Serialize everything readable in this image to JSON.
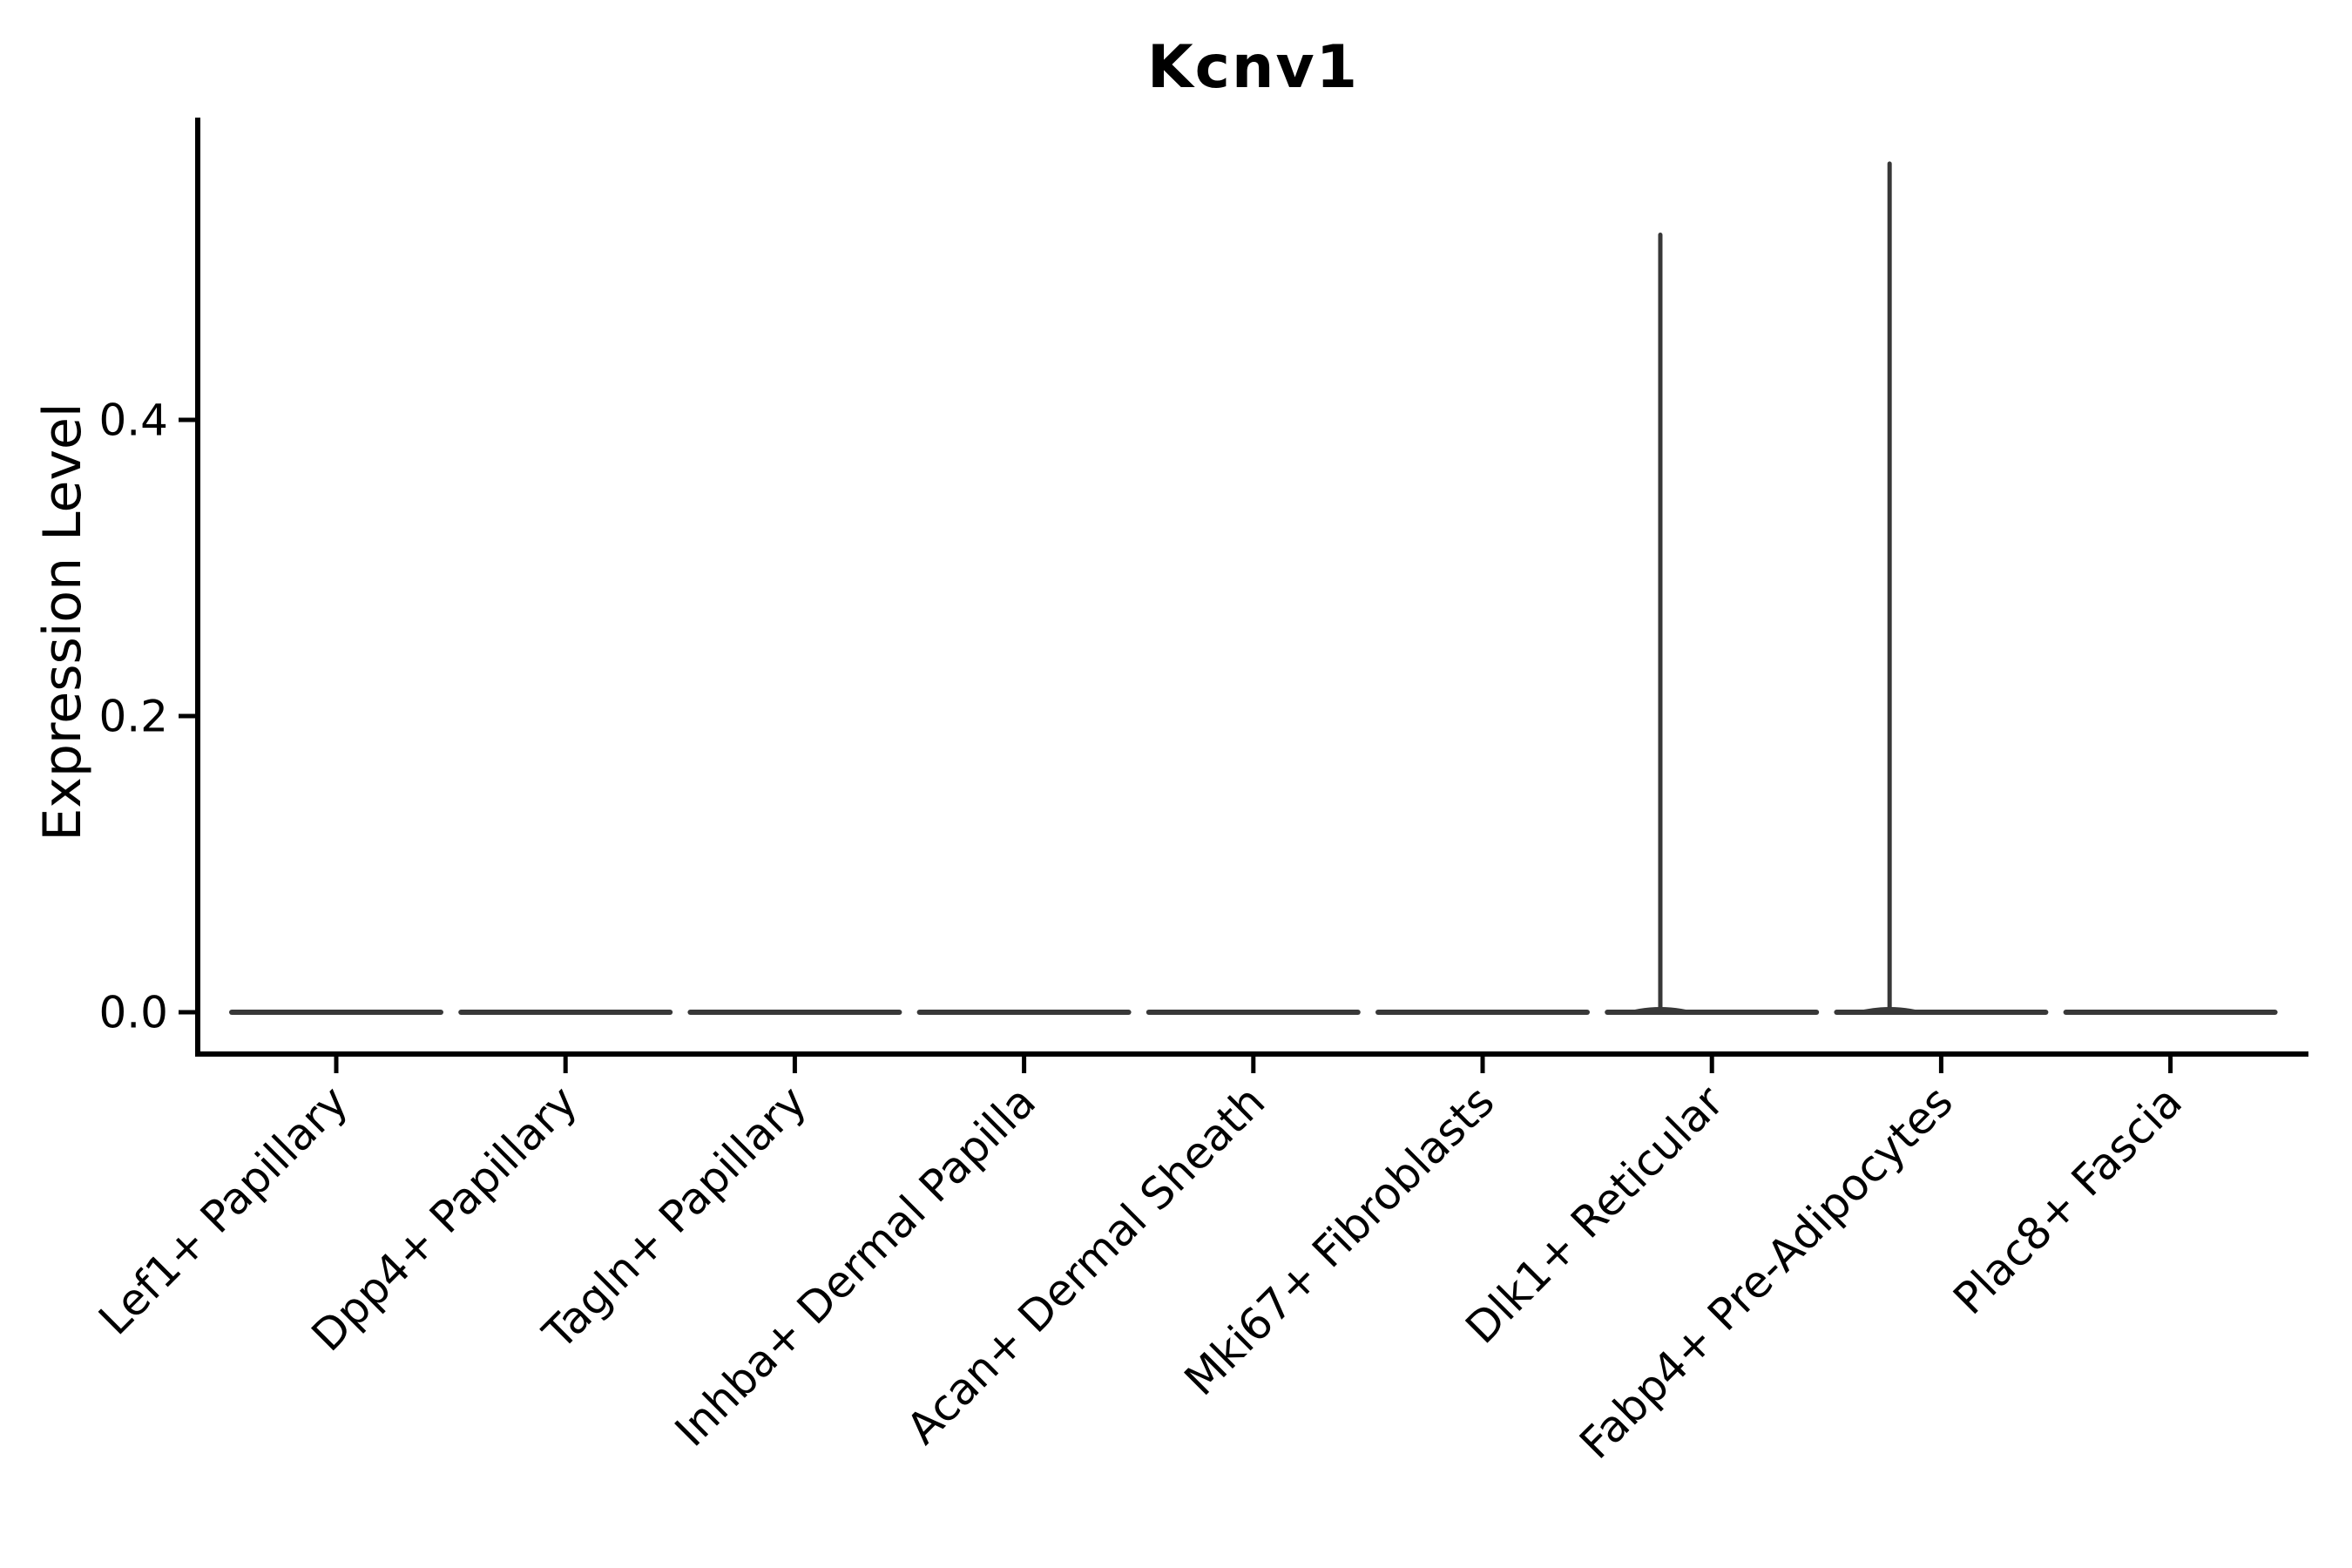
{
  "chart_data": {
    "type": "violin",
    "title": "Kcnv1",
    "ylabel": "Expression Level",
    "xlabel": "",
    "grid": false,
    "legend": "none",
    "ylim": [
      -0.03,
      0.6
    ],
    "ytick_labels": [
      "0.0",
      "0.2",
      "0.4"
    ],
    "ytick_values": [
      0.0,
      0.2,
      0.4
    ],
    "categories": [
      "Lef1+ Papillary",
      "Dpp4+ Papillary",
      "Tagln+ Papillary",
      "Inhba+ Dermal Papilla",
      "Acan+ Dermal Sheath",
      "Mki67+ Fibroblasts",
      "Dlk1+ Reticular",
      "Fabp4+ Pre-Adipocytes",
      "Plac8+ Fascia"
    ],
    "violins": [
      {
        "label": "Lef1+ Papillary",
        "max_expression": 0.0,
        "spike": null
      },
      {
        "label": "Dpp4+ Papillary",
        "max_expression": 0.0,
        "spike": null
      },
      {
        "label": "Tagln+ Papillary",
        "max_expression": 0.0,
        "spike": null
      },
      {
        "label": "Inhba+ Dermal Papilla",
        "max_expression": 0.0,
        "spike": null
      },
      {
        "label": "Acan+ Dermal Sheath",
        "max_expression": 0.0,
        "spike": null
      },
      {
        "label": "Mki67+ Fibroblasts",
        "max_expression": 0.0,
        "spike": null
      },
      {
        "label": "Dlk1+ Reticular",
        "max_expression": 0.525,
        "spike": {
          "value": 0.525,
          "offset_frac": -0.225
        }
      },
      {
        "label": "Fabp4+ Pre-Adipocytes",
        "max_expression": 0.573,
        "spike": {
          "value": 0.573,
          "offset_frac": -0.225
        }
      },
      {
        "label": "Plac8+ Fascia",
        "max_expression": 0.0,
        "spike": null
      }
    ],
    "colors": {
      "violin_stroke": "#383838",
      "axis": "#000000",
      "text": "#000000",
      "background": "#ffffff"
    }
  }
}
